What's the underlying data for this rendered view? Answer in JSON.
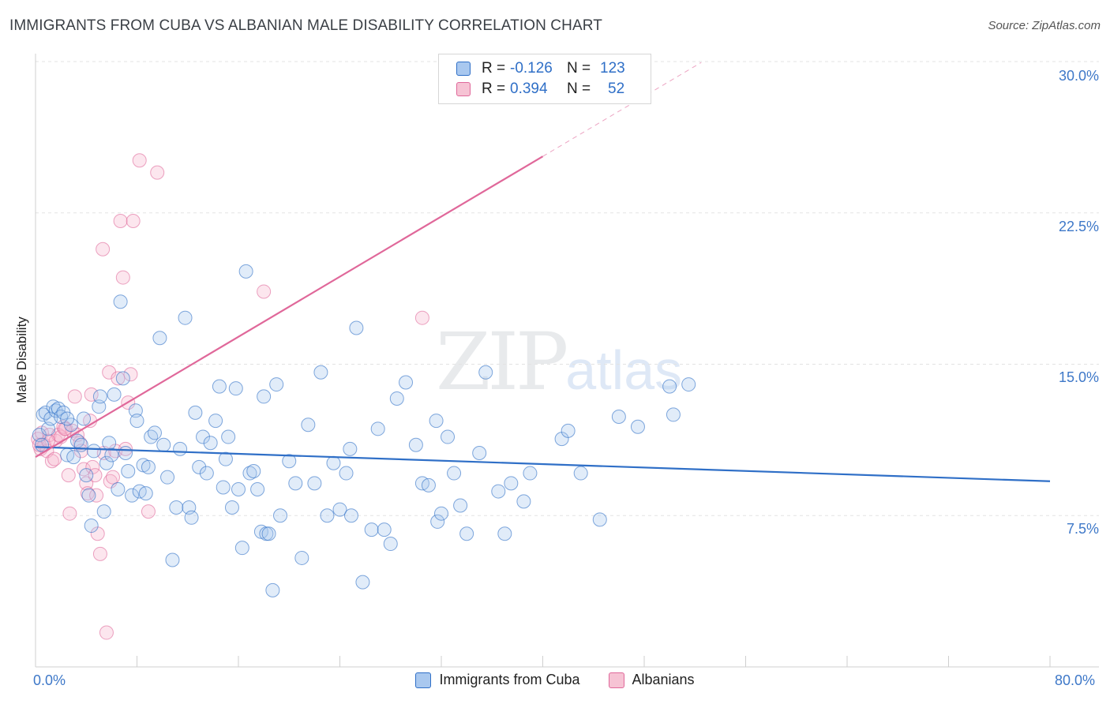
{
  "title": "IMMIGRANTS FROM CUBA VS ALBANIAN MALE DISABILITY CORRELATION CHART",
  "source": "Source: ZipAtlas.com",
  "watermark": {
    "zip": "ZIP",
    "atlas": "atlas"
  },
  "colors": {
    "blue": "#2f6fc7",
    "blue_fill": "#a9c8ef",
    "pink": "#e0689a",
    "pink_fill": "#f6b8cd"
  },
  "legend": {
    "rows": [
      {
        "r_label": "R =",
        "r_value": "-0.126",
        "n_label": "N =",
        "n_value": "123"
      },
      {
        "r_label": "R =",
        "r_value": "0.394",
        "n_label": "N =",
        "n_value": "52"
      }
    ]
  },
  "chart_data": {
    "type": "scatter",
    "title": "IMMIGRANTS FROM CUBA VS ALBANIAN MALE DISABILITY CORRELATION CHART",
    "xlabel": "",
    "ylabel": "Male Disability",
    "xlim": [
      0,
      80
    ],
    "ylim": [
      0,
      30
    ],
    "x_tick_labels": [
      "0.0%",
      "80.0%"
    ],
    "y_ticks": [
      7.5,
      15.0,
      22.5,
      30.0
    ],
    "y_tick_labels": [
      "7.5%",
      "15.0%",
      "22.5%",
      "30.0%"
    ],
    "grid": "horizontal dashed",
    "legend_position": "bottom",
    "series": [
      {
        "name": "Immigrants from Cuba",
        "color": "#2f6fc7",
        "trend": {
          "x": [
            0,
            80
          ],
          "y": [
            10.9,
            9.2
          ]
        },
        "points": [
          [
            0.3,
            11.5
          ],
          [
            0.5,
            11.0
          ],
          [
            0.6,
            12.5
          ],
          [
            0.8,
            12.6
          ],
          [
            1.0,
            11.8
          ],
          [
            1.2,
            12.3
          ],
          [
            1.4,
            12.9
          ],
          [
            1.6,
            12.7
          ],
          [
            1.8,
            12.8
          ],
          [
            2.0,
            12.4
          ],
          [
            2.2,
            12.6
          ],
          [
            2.5,
            10.5
          ],
          [
            2.8,
            12.0
          ],
          [
            3.0,
            10.4
          ],
          [
            3.3,
            11.2
          ],
          [
            3.6,
            11.0
          ],
          [
            3.8,
            12.3
          ],
          [
            4.0,
            9.5
          ],
          [
            4.2,
            8.5
          ],
          [
            4.4,
            7.0
          ],
          [
            4.6,
            10.7
          ],
          [
            5.0,
            12.9
          ],
          [
            5.1,
            13.4
          ],
          [
            5.4,
            7.7
          ],
          [
            5.6,
            10.1
          ],
          [
            5.8,
            11.1
          ],
          [
            6.0,
            10.5
          ],
          [
            6.2,
            13.5
          ],
          [
            6.5,
            8.8
          ],
          [
            6.7,
            18.1
          ],
          [
            6.9,
            14.3
          ],
          [
            7.1,
            10.6
          ],
          [
            7.3,
            9.7
          ],
          [
            7.6,
            8.5
          ],
          [
            7.9,
            12.7
          ],
          [
            8.0,
            12.2
          ],
          [
            8.2,
            8.7
          ],
          [
            8.5,
            10.0
          ],
          [
            8.7,
            8.6
          ],
          [
            8.9,
            9.9
          ],
          [
            9.1,
            11.4
          ],
          [
            9.4,
            11.6
          ],
          [
            9.8,
            16.3
          ],
          [
            10.1,
            11.0
          ],
          [
            10.4,
            9.4
          ],
          [
            10.8,
            5.3
          ],
          [
            11.1,
            7.9
          ],
          [
            11.4,
            10.8
          ],
          [
            11.8,
            17.3
          ],
          [
            12.1,
            7.9
          ],
          [
            12.3,
            7.4
          ],
          [
            12.6,
            12.6
          ],
          [
            12.9,
            9.9
          ],
          [
            13.2,
            11.4
          ],
          [
            13.5,
            9.6
          ],
          [
            13.8,
            11.1
          ],
          [
            14.2,
            12.2
          ],
          [
            14.5,
            13.9
          ],
          [
            14.8,
            8.9
          ],
          [
            15.0,
            10.3
          ],
          [
            15.2,
            11.4
          ],
          [
            15.5,
            7.9
          ],
          [
            15.8,
            13.8
          ],
          [
            16.0,
            8.8
          ],
          [
            16.3,
            5.9
          ],
          [
            16.6,
            19.6
          ],
          [
            16.9,
            9.6
          ],
          [
            17.2,
            9.7
          ],
          [
            17.5,
            8.8
          ],
          [
            17.8,
            6.7
          ],
          [
            18.0,
            13.4
          ],
          [
            18.2,
            6.6
          ],
          [
            18.4,
            6.6
          ],
          [
            18.7,
            3.8
          ],
          [
            19.0,
            14.0
          ],
          [
            19.3,
            7.5
          ],
          [
            20.0,
            10.2
          ],
          [
            20.5,
            9.1
          ],
          [
            21.0,
            5.4
          ],
          [
            21.5,
            12.0
          ],
          [
            22.0,
            9.1
          ],
          [
            22.5,
            14.6
          ],
          [
            23.0,
            7.5
          ],
          [
            23.5,
            10.1
          ],
          [
            24.0,
            7.8
          ],
          [
            24.5,
            9.6
          ],
          [
            24.8,
            10.8
          ],
          [
            24.9,
            7.5
          ],
          [
            25.3,
            16.8
          ],
          [
            25.8,
            4.2
          ],
          [
            26.5,
            6.8
          ],
          [
            27.0,
            11.8
          ],
          [
            28.0,
            6.1
          ],
          [
            27.5,
            6.8
          ],
          [
            28.5,
            13.3
          ],
          [
            29.2,
            14.1
          ],
          [
            30.0,
            11.0
          ],
          [
            30.5,
            9.1
          ],
          [
            31.0,
            9.0
          ],
          [
            31.7,
            7.2
          ],
          [
            31.6,
            12.2
          ],
          [
            32.0,
            7.6
          ],
          [
            32.5,
            11.4
          ],
          [
            33.0,
            9.6
          ],
          [
            33.5,
            8.0
          ],
          [
            34.0,
            6.6
          ],
          [
            35.0,
            10.6
          ],
          [
            35.5,
            14.6
          ],
          [
            36.5,
            8.7
          ],
          [
            37.0,
            6.6
          ],
          [
            37.5,
            9.1
          ],
          [
            38.5,
            8.2
          ],
          [
            39.0,
            9.6
          ],
          [
            41.5,
            11.3
          ],
          [
            42.0,
            11.7
          ],
          [
            43.0,
            9.6
          ],
          [
            44.5,
            7.3
          ],
          [
            46.0,
            12.4
          ],
          [
            47.5,
            11.9
          ],
          [
            50.0,
            13.9
          ],
          [
            50.3,
            12.5
          ],
          [
            51.5,
            14.0
          ],
          [
            2.5,
            12.3
          ]
        ]
      },
      {
        "name": "Albanians",
        "color": "#e0689a",
        "trend": {
          "x": [
            0,
            40
          ],
          "y": [
            10.4,
            25.3
          ]
        },
        "points": [
          [
            0.2,
            11.3
          ],
          [
            0.4,
            10.8
          ],
          [
            0.5,
            11.6
          ],
          [
            0.7,
            11.0
          ],
          [
            0.9,
            10.7
          ],
          [
            1.1,
            11.5
          ],
          [
            1.3,
            10.2
          ],
          [
            1.5,
            10.3
          ],
          [
            1.6,
            11.2
          ],
          [
            1.8,
            11.5
          ],
          [
            2.0,
            11.4
          ],
          [
            2.2,
            11.9
          ],
          [
            2.4,
            11.8
          ],
          [
            2.6,
            9.5
          ],
          [
            2.7,
            7.6
          ],
          [
            2.9,
            11.7
          ],
          [
            3.1,
            13.4
          ],
          [
            3.3,
            11.5
          ],
          [
            3.5,
            11.1
          ],
          [
            3.6,
            10.7
          ],
          [
            3.8,
            9.8
          ],
          [
            4.0,
            9.1
          ],
          [
            4.1,
            8.6
          ],
          [
            4.3,
            12.2
          ],
          [
            4.4,
            13.5
          ],
          [
            4.5,
            9.9
          ],
          [
            4.7,
            9.5
          ],
          [
            4.8,
            8.5
          ],
          [
            4.9,
            6.6
          ],
          [
            5.1,
            5.6
          ],
          [
            5.3,
            20.7
          ],
          [
            5.4,
            10.6
          ],
          [
            5.6,
            1.7
          ],
          [
            5.8,
            14.6
          ],
          [
            5.9,
            9.2
          ],
          [
            6.1,
            9.4
          ],
          [
            6.3,
            10.7
          ],
          [
            6.5,
            14.3
          ],
          [
            6.7,
            22.1
          ],
          [
            6.9,
            19.3
          ],
          [
            7.1,
            10.8
          ],
          [
            7.3,
            13.1
          ],
          [
            7.5,
            14.5
          ],
          [
            7.7,
            22.1
          ],
          [
            8.2,
            25.1
          ],
          [
            8.9,
            7.7
          ],
          [
            9.6,
            24.5
          ],
          [
            18.0,
            18.6
          ],
          [
            30.5,
            17.3
          ],
          [
            0.3,
            11.0
          ],
          [
            1.0,
            11.2
          ],
          [
            2.3,
            11.8
          ]
        ]
      }
    ]
  }
}
